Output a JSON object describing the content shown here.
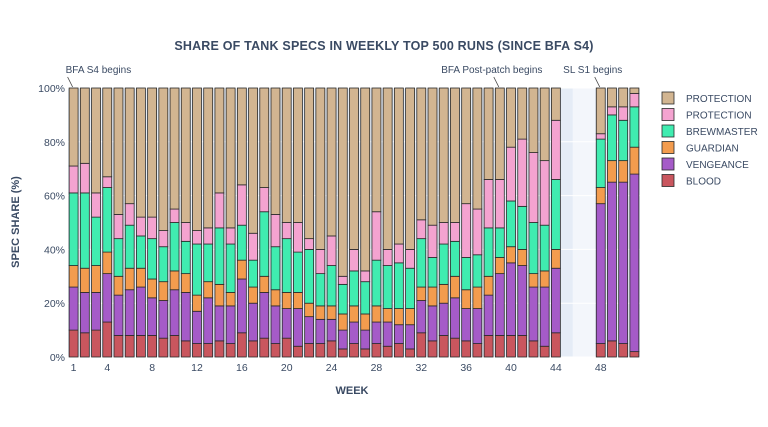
{
  "chart_data": {
    "type": "bar",
    "stacked": true,
    "title": "SHARE OF TANK SPECS IN WEEKLY TOP 500 RUNS (SINCE BFA S4)",
    "xlabel": "WEEK",
    "ylabel": "SPEC SHARE (%)",
    "ylim": [
      0,
      100
    ],
    "y_tick_values": [
      0,
      20,
      40,
      60,
      80,
      100
    ],
    "y_tick_labels": [
      "0%",
      "20%",
      "40%",
      "60%",
      "80%",
      "100%"
    ],
    "x_tick_values": [
      1,
      4,
      8,
      12,
      16,
      20,
      24,
      28,
      32,
      36,
      40,
      44,
      48
    ],
    "xlim": [
      0.5,
      51.5
    ],
    "gap_region": [
      45.5,
      47.5
    ],
    "weeks": [
      1,
      2,
      3,
      4,
      5,
      6,
      7,
      8,
      9,
      10,
      11,
      12,
      13,
      14,
      15,
      16,
      17,
      18,
      19,
      20,
      21,
      22,
      23,
      24,
      25,
      26,
      27,
      28,
      29,
      30,
      31,
      32,
      33,
      34,
      35,
      36,
      37,
      38,
      39,
      40,
      41,
      42,
      43,
      44,
      48,
      49,
      50,
      51
    ],
    "series": [
      {
        "name": "BLOOD",
        "color": "#c9565e",
        "values": [
          10,
          9,
          10,
          13,
          8,
          8,
          8,
          8,
          7,
          8,
          6,
          5,
          5,
          6,
          5,
          9,
          6,
          7,
          5,
          7,
          4,
          5,
          5,
          6,
          3,
          5,
          3,
          5,
          4,
          5,
          3,
          9,
          6,
          8,
          7,
          6,
          5,
          8,
          8,
          8,
          8,
          6,
          4,
          9,
          5,
          6,
          5,
          2
        ]
      },
      {
        "name": "VENGEANCE",
        "color": "#a55bc8",
        "values": [
          16,
          15,
          14,
          18,
          15,
          17,
          18,
          14,
          14,
          17,
          18,
          12,
          17,
          13,
          14,
          20,
          14,
          17,
          14,
          11,
          14,
          10,
          9,
          8,
          7,
          8,
          7,
          8,
          9,
          7,
          9,
          12,
          13,
          12,
          15,
          12,
          13,
          15,
          23,
          27,
          26,
          20,
          22,
          24,
          52,
          59,
          60,
          66
        ]
      },
      {
        "name": "GUARDIAN",
        "color": "#f39c4e",
        "values": [
          8,
          9,
          10,
          8,
          7,
          8,
          7,
          7,
          7,
          7,
          7,
          6,
          6,
          8,
          5,
          7,
          6,
          6,
          6,
          6,
          6,
          5,
          5,
          5,
          6,
          6,
          6,
          6,
          5,
          6,
          6,
          5,
          7,
          7,
          8,
          7,
          8,
          7,
          6,
          6,
          6,
          5,
          6,
          7,
          6,
          8,
          8,
          10
        ]
      },
      {
        "name": "BREWMASTER",
        "color": "#40ecb0",
        "values": [
          27,
          28,
          18,
          24,
          14,
          16,
          12,
          15,
          13,
          18,
          12,
          19,
          14,
          21,
          18,
          13,
          10,
          24,
          16,
          20,
          15,
          20,
          12,
          15,
          11,
          13,
          12,
          17,
          16,
          17,
          15,
          18,
          11,
          15,
          13,
          12,
          12,
          18,
          11,
          17,
          16,
          19,
          17,
          26,
          18,
          17,
          15,
          15
        ]
      },
      {
        "name": "PROTECTION",
        "color": "#f4a3d0",
        "values": [
          10,
          11,
          9,
          4,
          9,
          8,
          7,
          8,
          6,
          5,
          7,
          5,
          6,
          13,
          6,
          15,
          10,
          9,
          12,
          6,
          11,
          4,
          9,
          11,
          3,
          8,
          4,
          18,
          6,
          7,
          7,
          7,
          12,
          8,
          7,
          20,
          17,
          18,
          18,
          20,
          25,
          26,
          24,
          22,
          2,
          3,
          5,
          5
        ]
      },
      {
        "name": "PROTECTION",
        "color": "#d2b591",
        "values": [
          29,
          28,
          39,
          33,
          47,
          43,
          48,
          48,
          53,
          45,
          50,
          53,
          52,
          39,
          52,
          36,
          54,
          37,
          47,
          50,
          50,
          56,
          60,
          55,
          70,
          60,
          68,
          46,
          60,
          58,
          60,
          49,
          51,
          50,
          50,
          43,
          45,
          34,
          34,
          22,
          19,
          24,
          27,
          12,
          17,
          7,
          7,
          2
        ]
      }
    ],
    "legend_order": [
      5,
      4,
      3,
      2,
      1,
      0
    ],
    "legend_position": "right",
    "annotations": [
      {
        "text": "BFA S4 begins",
        "x": 1
      },
      {
        "text": "BFA Post-patch begins",
        "x": 39
      },
      {
        "text": "SL S1 begins",
        "x": 48
      }
    ]
  }
}
